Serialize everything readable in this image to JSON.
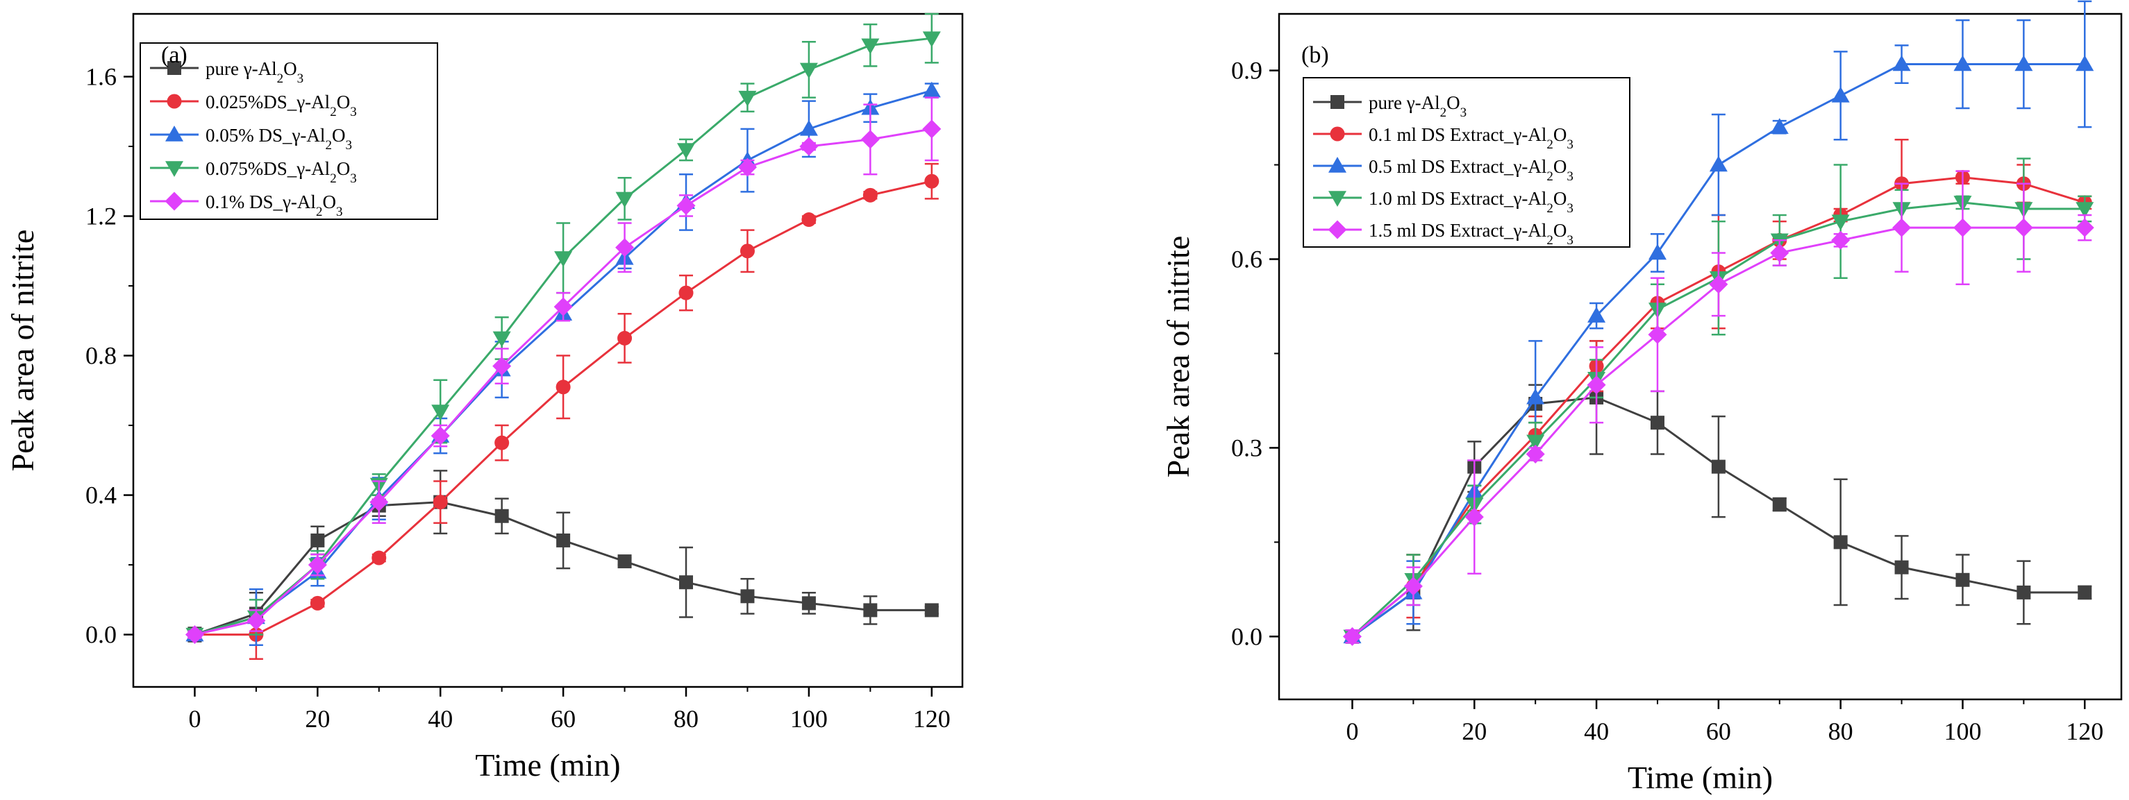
{
  "chart_data": [
    {
      "type": "line",
      "panel_label": "(a)",
      "xlabel": "Time (min)",
      "ylabel": "Peak area of nitrite",
      "xlim": [
        -10,
        125
      ],
      "ylim": [
        -0.15,
        1.78
      ],
      "xticks": [
        0,
        20,
        40,
        60,
        80,
        100,
        120
      ],
      "yticks": [
        0.0,
        0.4,
        0.8,
        1.2,
        1.6
      ],
      "ytick_format": 1,
      "legend_position": "top-left",
      "x": [
        0,
        10,
        20,
        30,
        40,
        50,
        60,
        70,
        80,
        90,
        100,
        110,
        120
      ],
      "series": [
        {
          "name": "pure γ-Al₂O₃",
          "color": "#404040",
          "marker": "square",
          "values": [
            0.0,
            0.06,
            0.27,
            0.37,
            0.38,
            0.34,
            0.27,
            0.21,
            0.15,
            0.11,
            0.09,
            0.07,
            0.07
          ],
          "errors": [
            0.02,
            0.06,
            0.04,
            0.03,
            0.09,
            0.05,
            0.08,
            0.01,
            0.1,
            0.05,
            0.03,
            0.04,
            0.01
          ]
        },
        {
          "name": "0.025%DS_γ-Al₂O₃",
          "color": "#e8323c",
          "marker": "circle",
          "values": [
            0.0,
            0.0,
            0.09,
            0.22,
            0.38,
            0.55,
            0.71,
            0.85,
            0.98,
            1.1,
            1.19,
            1.26,
            1.3
          ],
          "errors": [
            0.01,
            0.07,
            0.01,
            0.01,
            0.06,
            0.05,
            0.09,
            0.07,
            0.05,
            0.06,
            0.01,
            0.01,
            0.05
          ]
        },
        {
          "name": "0.05% DS_γ-Al₂O₃",
          "color": "#2f6fe0",
          "marker": "triangle-up",
          "values": [
            0.0,
            0.05,
            0.18,
            0.39,
            0.57,
            0.76,
            0.92,
            1.08,
            1.24,
            1.36,
            1.45,
            1.51,
            1.56
          ],
          "errors": [
            0.01,
            0.08,
            0.04,
            0.06,
            0.05,
            0.08,
            0.02,
            0.03,
            0.08,
            0.09,
            0.08,
            0.04,
            0.02
          ]
        },
        {
          "name": "0.075%DS_γ-Al₂O₃",
          "color": "#3aaa6a",
          "marker": "triangle-down",
          "values": [
            0.0,
            0.05,
            0.2,
            0.43,
            0.64,
            0.85,
            1.08,
            1.25,
            1.39,
            1.54,
            1.62,
            1.69,
            1.71
          ],
          "errors": [
            0.01,
            0.05,
            0.04,
            0.03,
            0.09,
            0.06,
            0.1,
            0.06,
            0.03,
            0.04,
            0.08,
            0.06,
            0.07
          ]
        },
        {
          "name": "0.1% DS_γ-Al₂O₃",
          "color": "#e040fb",
          "marker": "diamond",
          "values": [
            0.0,
            0.04,
            0.2,
            0.38,
            0.57,
            0.77,
            0.94,
            1.11,
            1.23,
            1.34,
            1.4,
            1.42,
            1.45
          ],
          "errors": [
            0.01,
            0.03,
            0.03,
            0.06,
            0.03,
            0.05,
            0.04,
            0.07,
            0.03,
            0.02,
            0.01,
            0.1,
            0.09
          ]
        }
      ]
    },
    {
      "type": "line",
      "panel_label": "(b)",
      "xlabel": "Time (min)",
      "ylabel": "Peak area of nitrite",
      "xlim": [
        -12,
        126
      ],
      "ylim": [
        -0.1,
        0.99
      ],
      "xticks": [
        0,
        20,
        40,
        60,
        80,
        100,
        120
      ],
      "yticks": [
        0.0,
        0.3,
        0.6,
        0.9
      ],
      "ytick_format": 1,
      "legend_position": "top-left",
      "x": [
        0,
        10,
        20,
        30,
        40,
        50,
        60,
        70,
        80,
        90,
        100,
        110,
        120
      ],
      "series": [
        {
          "name": "pure γ-Al₂O₃",
          "color": "#404040",
          "marker": "square",
          "values": [
            0.0,
            0.07,
            0.27,
            0.37,
            0.38,
            0.34,
            0.27,
            0.21,
            0.15,
            0.11,
            0.09,
            0.07,
            0.07
          ],
          "errors": [
            0.01,
            0.06,
            0.04,
            0.03,
            0.09,
            0.05,
            0.08,
            0.01,
            0.1,
            0.05,
            0.04,
            0.05,
            0.01
          ]
        },
        {
          "name": "0.1 ml DS Extract_γ-Al₂O₃",
          "color": "#e8323c",
          "marker": "circle",
          "values": [
            0.0,
            0.08,
            0.22,
            0.32,
            0.43,
            0.53,
            0.58,
            0.63,
            0.67,
            0.72,
            0.73,
            0.72,
            0.69
          ],
          "errors": [
            0.01,
            0.05,
            0.02,
            0.03,
            0.04,
            0.04,
            0.09,
            0.03,
            0.01,
            0.07,
            0.01,
            0.03,
            0.01
          ]
        },
        {
          "name": "0.5 ml DS Extract_γ-Al₂O₃",
          "color": "#2f6fe0",
          "marker": "triangle-up",
          "values": [
            0.0,
            0.07,
            0.23,
            0.38,
            0.51,
            0.61,
            0.75,
            0.81,
            0.86,
            0.91,
            0.91,
            0.91,
            0.91
          ],
          "errors": [
            0.01,
            0.05,
            0.01,
            0.09,
            0.02,
            0.03,
            0.08,
            0.01,
            0.07,
            0.03,
            0.07,
            0.07,
            0.1
          ]
        },
        {
          "name": "1.0 ml DS Extract_γ-Al₂O₃",
          "color": "#3aaa6a",
          "marker": "triangle-down",
          "values": [
            0.0,
            0.09,
            0.21,
            0.31,
            0.41,
            0.52,
            0.57,
            0.63,
            0.66,
            0.68,
            0.69,
            0.68,
            0.68
          ],
          "errors": [
            0.01,
            0.04,
            0.03,
            0.03,
            0.03,
            0.04,
            0.09,
            0.04,
            0.09,
            0.03,
            0.01,
            0.08,
            0.02
          ]
        },
        {
          "name": "1.5 ml DS Extract_γ-Al₂O₃",
          "color": "#e040fb",
          "marker": "diamond",
          "values": [
            0.0,
            0.08,
            0.19,
            0.29,
            0.4,
            0.48,
            0.56,
            0.61,
            0.63,
            0.65,
            0.65,
            0.65,
            0.65
          ],
          "errors": [
            0.01,
            0.03,
            0.09,
            0.01,
            0.06,
            0.09,
            0.05,
            0.02,
            0.01,
            0.07,
            0.09,
            0.07,
            0.02
          ]
        }
      ]
    }
  ]
}
